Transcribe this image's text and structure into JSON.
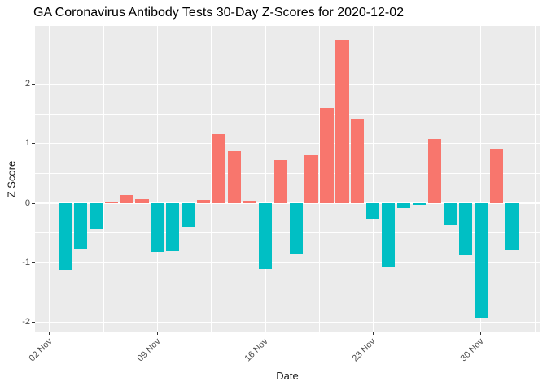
{
  "chart_data": {
    "type": "bar",
    "title": "GA Coronavirus Antibody Tests 30-Day Z-Scores for 2020-12-02",
    "xlabel": "Date",
    "ylabel": "Z Score",
    "dates": [
      "2020-11-03",
      "2020-11-04",
      "2020-11-05",
      "2020-11-06",
      "2020-11-07",
      "2020-11-08",
      "2020-11-09",
      "2020-11-10",
      "2020-11-11",
      "2020-11-12",
      "2020-11-13",
      "2020-11-14",
      "2020-11-15",
      "2020-11-16",
      "2020-11-17",
      "2020-11-18",
      "2020-11-19",
      "2020-11-20",
      "2020-11-21",
      "2020-11-22",
      "2020-11-23",
      "2020-11-24",
      "2020-11-25",
      "2020-11-26",
      "2020-11-27",
      "2020-11-28",
      "2020-11-29",
      "2020-11-30",
      "2020-12-01",
      "2020-12-02"
    ],
    "values": [
      -1.11,
      -0.78,
      -0.44,
      0.02,
      0.14,
      0.07,
      -0.81,
      -0.8,
      -0.4,
      0.06,
      1.16,
      0.87,
      0.04,
      -1.1,
      0.73,
      -0.85,
      0.81,
      1.59,
      2.74,
      1.42,
      -0.26,
      -1.07,
      -0.08,
      -0.02,
      1.08,
      -0.36,
      -0.87,
      -1.92,
      0.91,
      -0.79
    ],
    "bar_colors": {
      "positive": "#F8766D",
      "negative": "#00BFC4"
    },
    "x_ticks": [
      {
        "day": 0,
        "label": "02 Nov"
      },
      {
        "day": 7,
        "label": "09 Nov"
      },
      {
        "day": 14,
        "label": "16 Nov"
      },
      {
        "day": 21,
        "label": "23 Nov"
      },
      {
        "day": 28,
        "label": "30 Nov"
      }
    ],
    "x_minor_days": [
      3.5,
      10.5,
      17.5,
      24.5,
      31.5
    ],
    "y_ticks": [
      {
        "v": -2,
        "label": "-2"
      },
      {
        "v": -1,
        "label": "-1"
      },
      {
        "v": 0,
        "label": "0"
      },
      {
        "v": 1,
        "label": "1"
      },
      {
        "v": 2,
        "label": "2"
      }
    ],
    "y_minor": [
      -1.5,
      -0.5,
      0.5,
      1.5,
      2.5
    ],
    "first_bar_day": 1,
    "bar_width_days": 0.86,
    "xlim_days": [
      -0.95,
      31.82
    ],
    "ylim": [
      -2.15,
      2.97
    ],
    "grid": true,
    "legend": "none",
    "panel_bg": "#EBEBEB",
    "grid_color": "#FFFFFF",
    "tick_color": "#333333",
    "tick_label_color": "#4D4D4D",
    "axis_title_color": "#1A1A1A",
    "title_color": "#000000"
  }
}
